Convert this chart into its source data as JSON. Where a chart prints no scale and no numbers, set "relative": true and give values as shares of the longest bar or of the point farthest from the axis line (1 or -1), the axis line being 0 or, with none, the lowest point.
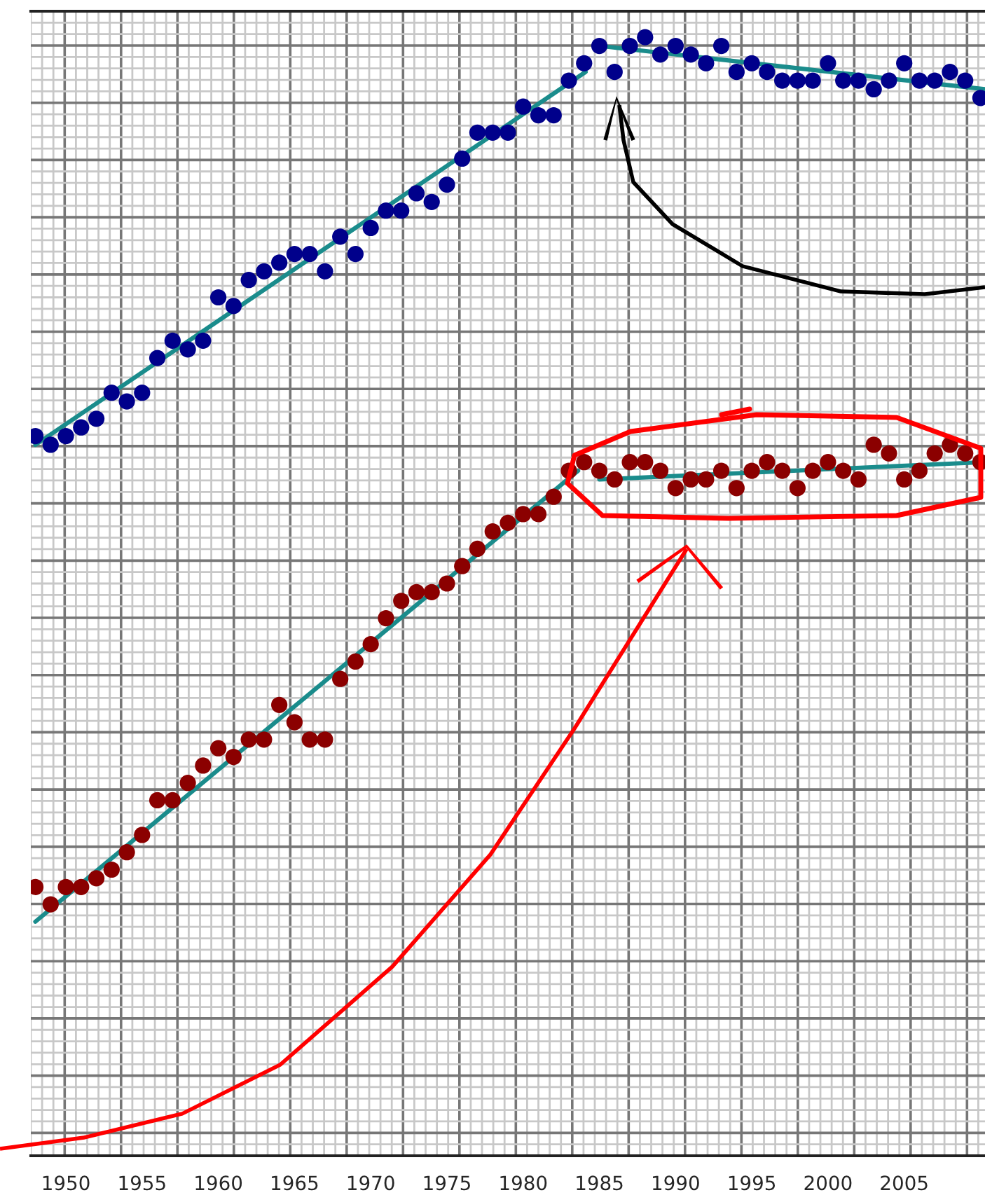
{
  "chart_data": {
    "type": "scatter",
    "relative": true,
    "grid": true,
    "legend": false,
    "xlim": [
      1947.7,
      2010.3
    ],
    "xticks": [
      1950,
      1955,
      1960,
      1965,
      1970,
      1975,
      1980,
      1985,
      1990,
      1995,
      2000,
      2005
    ],
    "x": [
      1948,
      1949,
      1950,
      1951,
      1952,
      1953,
      1954,
      1955,
      1956,
      1957,
      1958,
      1959,
      1960,
      1961,
      1962,
      1963,
      1964,
      1965,
      1966,
      1967,
      1968,
      1969,
      1970,
      1971,
      1972,
      1973,
      1974,
      1975,
      1976,
      1977,
      1978,
      1979,
      1980,
      1981,
      1982,
      1983,
      1984,
      1985,
      1986,
      1987,
      1988,
      1989,
      1990,
      1991,
      1992,
      1993,
      1994,
      1995,
      1996,
      1997,
      1998,
      1999,
      2000,
      2001,
      2002,
      2003,
      2004,
      2005,
      2006,
      2007,
      2008,
      2009,
      2010
    ],
    "series": [
      {
        "color": "#00008b",
        "marker": "circle",
        "values": [
          0.54,
          0.53,
          0.54,
          0.55,
          0.56,
          0.59,
          0.58,
          0.59,
          0.63,
          0.65,
          0.64,
          0.65,
          0.7,
          0.69,
          0.72,
          0.73,
          0.74,
          0.75,
          0.75,
          0.73,
          0.77,
          0.75,
          0.78,
          0.8,
          0.8,
          0.82,
          0.81,
          0.83,
          0.86,
          0.89,
          0.89,
          0.89,
          0.92,
          0.91,
          0.91,
          0.95,
          0.97,
          0.99,
          0.96,
          0.99,
          1.0,
          0.98,
          0.99,
          0.98,
          0.97,
          0.99,
          0.96,
          0.97,
          0.96,
          0.95,
          0.95,
          0.95,
          0.97,
          0.95,
          0.95,
          0.94,
          0.95,
          0.97,
          0.95,
          0.95,
          0.96,
          0.95,
          0.93
        ]
      },
      {
        "color": "#8b0000",
        "marker": "circle",
        "values": [
          0.02,
          0.0,
          0.02,
          0.02,
          0.03,
          0.04,
          0.06,
          0.08,
          0.12,
          0.12,
          0.14,
          0.16,
          0.18,
          0.17,
          0.19,
          0.19,
          0.23,
          0.21,
          0.19,
          0.19,
          0.26,
          0.28,
          0.3,
          0.33,
          0.35,
          0.36,
          0.36,
          0.37,
          0.39,
          0.41,
          0.43,
          0.44,
          0.45,
          0.45,
          0.47,
          0.5,
          0.51,
          0.5,
          0.49,
          0.51,
          0.51,
          0.5,
          0.48,
          0.49,
          0.49,
          0.5,
          0.48,
          0.5,
          0.51,
          0.5,
          0.48,
          0.5,
          0.51,
          0.5,
          0.49,
          0.53,
          0.52,
          0.49,
          0.5,
          0.52,
          0.53,
          0.52,
          0.51
        ]
      },
      {
        "type": "line",
        "color": "#1a8c8c",
        "x": [
          1948,
          1984.1
        ],
        "values": [
          0.53,
          0.96
        ]
      },
      {
        "type": "line",
        "color": "#1a8c8c",
        "x": [
          1985,
          2010.3
        ],
        "values": [
          0.99,
          0.94
        ]
      },
      {
        "type": "line",
        "color": "#1a8c8c",
        "x": [
          1948,
          1983.6
        ],
        "values": [
          -0.02,
          0.5
        ]
      },
      {
        "type": "line",
        "color": "#1a8c8c",
        "x": [
          1985,
          2010.3
        ],
        "values": [
          0.49,
          0.51
        ]
      }
    ]
  }
}
